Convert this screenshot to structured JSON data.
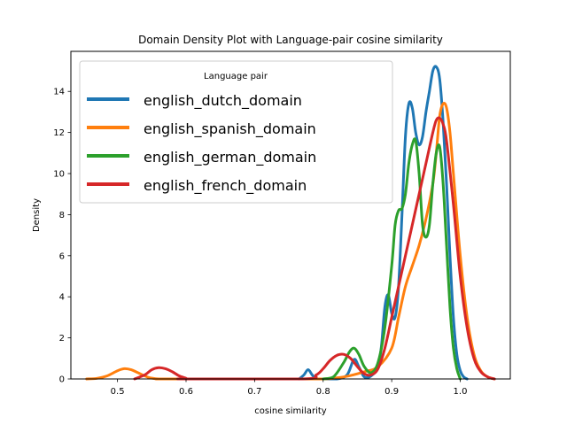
{
  "chart_data": {
    "type": "line",
    "title": "Domain Density Plot with Language-pair cosine similarity",
    "xlabel": "cosine similarity",
    "ylabel": "Density",
    "xlim": [
      0.432,
      1.073
    ],
    "ylim": [
      0,
      15.95
    ],
    "xticks": [
      0.5,
      0.6,
      0.7,
      0.8,
      0.9,
      1.0
    ],
    "xtick_labels": [
      "0.5",
      "0.6",
      "0.7",
      "0.8",
      "0.9",
      "1.0"
    ],
    "yticks": [
      0,
      2,
      4,
      6,
      8,
      10,
      12,
      14
    ],
    "ytick_labels": [
      "0",
      "2",
      "4",
      "6",
      "8",
      "10",
      "12",
      "14"
    ],
    "grid": false,
    "legend": {
      "title": "Language pair",
      "placement": "top-left"
    },
    "series": [
      {
        "name": "english_dutch_domain",
        "color": "#1f77b4",
        "x": [
          0.765,
          0.772,
          0.778,
          0.784,
          0.79,
          0.8,
          0.82,
          0.835,
          0.845,
          0.852,
          0.86,
          0.87,
          0.88,
          0.885,
          0.89,
          0.895,
          0.9,
          0.905,
          0.91,
          0.915,
          0.92,
          0.925,
          0.93,
          0.935,
          0.94,
          0.945,
          0.95,
          0.955,
          0.96,
          0.965,
          0.97,
          0.975,
          0.98,
          0.985,
          0.99,
          0.995,
          1.0,
          1.005,
          1.01
        ],
        "y": [
          0,
          0.2,
          0.45,
          0.2,
          0,
          0,
          0,
          0.2,
          0.95,
          0.6,
          0.1,
          0.15,
          0.6,
          1.6,
          3.5,
          4.1,
          3.2,
          3.0,
          4.5,
          8.0,
          11.8,
          13.4,
          13.2,
          12.0,
          11.4,
          11.8,
          13.0,
          14.0,
          15.0,
          15.2,
          14.6,
          12.5,
          9.5,
          6.0,
          3.0,
          1.2,
          0.4,
          0.1,
          0
        ]
      },
      {
        "name": "english_spanish_domain",
        "color": "#ff7f0e",
        "x": [
          0.455,
          0.47,
          0.485,
          0.5,
          0.51,
          0.52,
          0.53,
          0.545,
          0.56,
          0.575,
          0.77,
          0.8,
          0.83,
          0.86,
          0.88,
          0.9,
          0.91,
          0.92,
          0.93,
          0.94,
          0.95,
          0.96,
          0.965,
          0.97,
          0.975,
          0.98,
          0.985,
          0.99,
          1.0,
          1.01,
          1.02,
          1.03,
          1.04,
          1.05
        ],
        "y": [
          0,
          0.03,
          0.15,
          0.4,
          0.5,
          0.45,
          0.3,
          0.08,
          0,
          0,
          0,
          0,
          0.1,
          0.35,
          0.6,
          1.5,
          3.0,
          4.5,
          5.5,
          6.5,
          7.8,
          9.5,
          11.0,
          12.8,
          13.4,
          13.2,
          12.0,
          10.0,
          6.0,
          3.0,
          1.2,
          0.4,
          0.1,
          0
        ]
      },
      {
        "name": "english_german_domain",
        "color": "#2ca02c",
        "x": [
          0.8,
          0.815,
          0.83,
          0.838,
          0.845,
          0.852,
          0.86,
          0.87,
          0.88,
          0.89,
          0.9,
          0.905,
          0.91,
          0.915,
          0.92,
          0.925,
          0.93,
          0.935,
          0.94,
          0.945,
          0.95,
          0.955,
          0.96,
          0.965,
          0.97,
          0.975,
          0.98,
          0.985,
          0.99,
          0.995,
          1.0
        ],
        "y": [
          0,
          0.1,
          0.8,
          1.3,
          1.5,
          1.2,
          0.6,
          0.3,
          0.8,
          2.5,
          5.5,
          7.5,
          8.2,
          8.3,
          9.0,
          10.5,
          11.4,
          11.6,
          10.0,
          7.5,
          6.9,
          7.5,
          9.5,
          11.0,
          11.3,
          9.5,
          6.5,
          3.5,
          1.5,
          0.5,
          0
        ]
      },
      {
        "name": "english_french_domain",
        "color": "#d62728",
        "x": [
          0.525,
          0.54,
          0.55,
          0.56,
          0.57,
          0.58,
          0.59,
          0.6,
          0.6,
          0.77,
          0.79,
          0.8,
          0.81,
          0.82,
          0.83,
          0.84,
          0.85,
          0.86,
          0.87,
          0.88,
          0.89,
          0.9,
          0.91,
          0.92,
          0.93,
          0.94,
          0.95,
          0.96,
          0.965,
          0.97,
          0.975,
          0.98,
          0.99,
          1.0,
          1.01,
          1.02,
          1.03,
          1.04,
          1.05
        ],
        "y": [
          0,
          0.2,
          0.45,
          0.55,
          0.5,
          0.35,
          0.15,
          0.03,
          0,
          0,
          0.2,
          0.5,
          0.9,
          1.15,
          1.2,
          1.0,
          0.6,
          0.25,
          0.2,
          0.5,
          1.5,
          3.0,
          4.5,
          6.0,
          7.5,
          9.0,
          10.5,
          12.0,
          12.6,
          12.7,
          12.4,
          11.6,
          8.5,
          5.0,
          2.5,
          1.0,
          0.35,
          0.1,
          0
        ]
      }
    ]
  }
}
